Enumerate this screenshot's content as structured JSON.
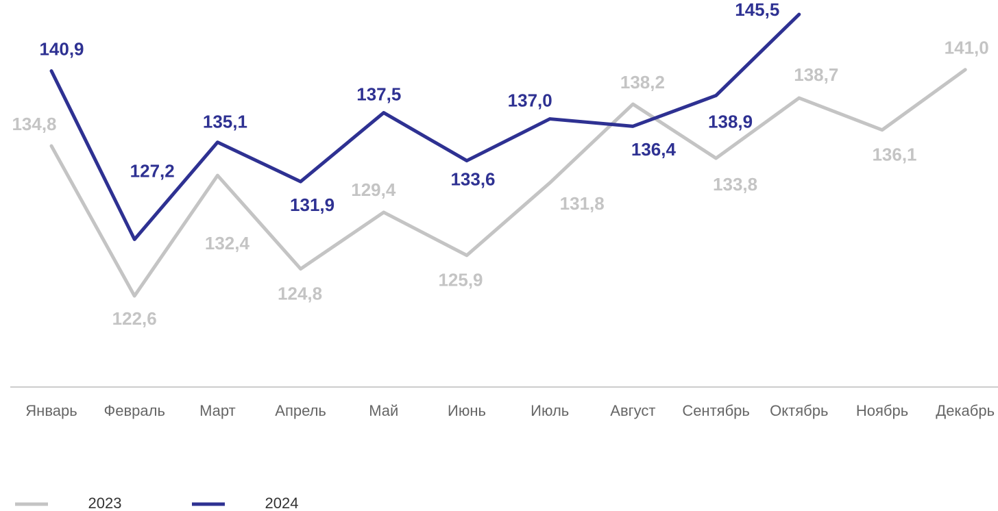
{
  "chart_data": {
    "type": "line",
    "categories": [
      "Январь",
      "Февраль",
      "Март",
      "Апрель",
      "Май",
      "Июнь",
      "Июль",
      "Август",
      "Сентябрь",
      "Октябрь",
      "Ноябрь",
      "Декабрь"
    ],
    "series": [
      {
        "name": "2023",
        "color": "#c4c4c4",
        "values": [
          134.8,
          122.6,
          132.4,
          124.8,
          129.4,
          125.9,
          131.8,
          138.2,
          133.8,
          138.7,
          136.1,
          141.0
        ],
        "value_labels": [
          "134,8",
          "122,6",
          "132,4",
          "124,8",
          "129,4",
          "125,9",
          "131,8",
          "138,2",
          "133,8",
          "138,7",
          "136,1",
          "141,0"
        ]
      },
      {
        "name": "2024",
        "color": "#2e3192",
        "values": [
          140.9,
          127.2,
          135.1,
          131.9,
          137.5,
          133.6,
          137.0,
          136.4,
          138.9,
          145.5,
          null,
          null
        ],
        "value_labels": [
          "140,9",
          "127,2",
          "135,1",
          "131,9",
          "137,5",
          "133,6",
          "137,0",
          "136,4",
          "138,9",
          "145,5",
          null,
          null
        ]
      }
    ]
  }
}
